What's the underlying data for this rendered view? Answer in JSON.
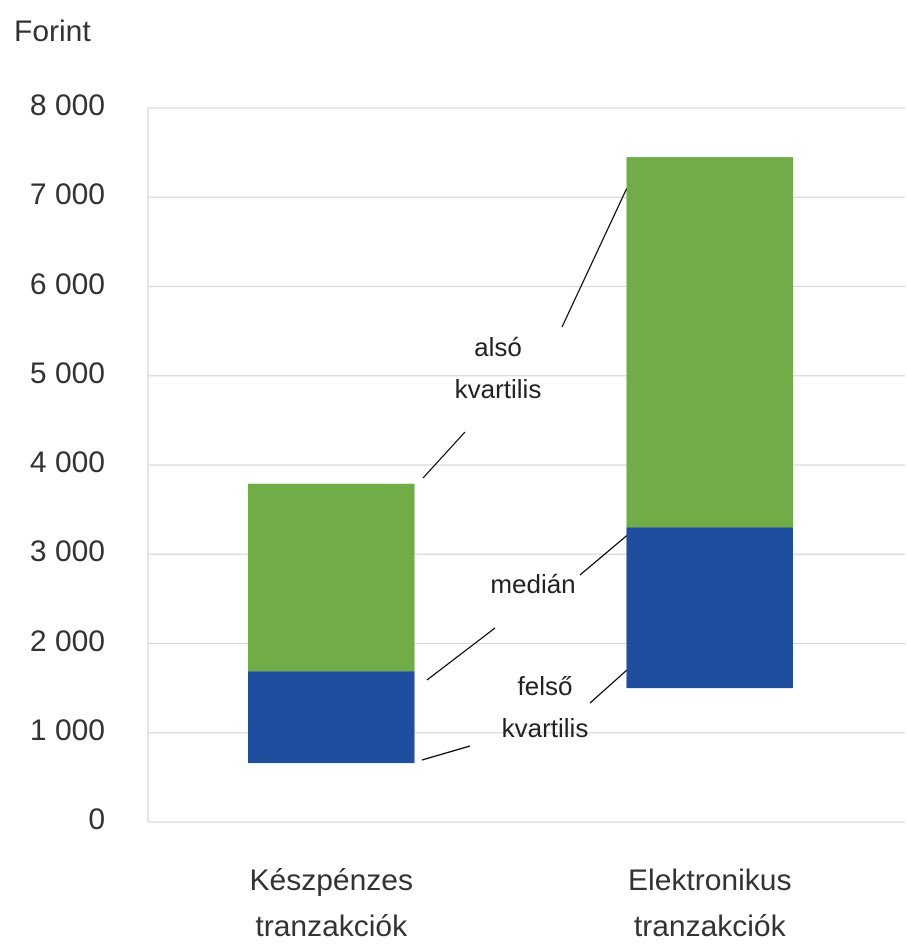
{
  "chart_data": {
    "type": "range-bar",
    "y_label": "Forint",
    "categories": [
      "Készpénzes tranzakciók",
      "Elektronikus tranzakciók"
    ],
    "series": [
      {
        "name": "alsó kvartilis",
        "values": [
          660,
          1500
        ]
      },
      {
        "name": "medián",
        "values": [
          1690,
          3300
        ]
      },
      {
        "name": "felső kvartilis",
        "values": [
          3790,
          7450
        ]
      }
    ],
    "segment_colors": [
      "#1f4e9f",
      "#70ad47"
    ],
    "ylim": [
      0,
      8000
    ],
    "yticks": [
      0,
      {
        "value": 1000,
        "label": "1 000"
      },
      {
        "value": 2000,
        "label": "2 000"
      },
      {
        "value": 3000,
        "label": "3 000"
      },
      {
        "value": 4000,
        "label": "4 000"
      },
      {
        "value": 5000,
        "label": "5 000"
      },
      {
        "value": 6000,
        "label": "6 000"
      },
      {
        "value": 7000,
        "label": "7 000"
      },
      {
        "value": 8000,
        "label": "8 000"
      }
    ],
    "grid": true
  }
}
